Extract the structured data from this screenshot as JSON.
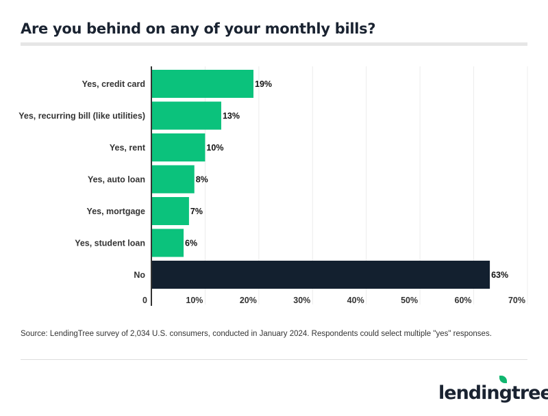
{
  "title": "Are you behind on any of your monthly bills?",
  "source": "Source: LendingTree survey of 2,034 U.S. consumers, conducted in January 2024. Respondents could select multiple \"yes\" responses.",
  "logo": "lendingtree",
  "chart_data": {
    "type": "bar",
    "orientation": "horizontal",
    "categories": [
      "Yes, credit card",
      "Yes, recurring bill (like utilities)",
      "Yes, rent",
      "Yes, auto loan",
      "Yes, mortgage",
      "Yes, student loan",
      "No"
    ],
    "values": [
      19,
      13,
      10,
      8,
      7,
      6,
      63
    ],
    "data_labels": [
      "19%",
      "13%",
      "10%",
      "8%",
      "7%",
      "6%",
      "63%"
    ],
    "colors": [
      "#0bc27c",
      "#0bc27c",
      "#0bc27c",
      "#0bc27c",
      "#0bc27c",
      "#0bc27c",
      "#13202f"
    ],
    "xlim": [
      0,
      70
    ],
    "xticks": [
      "0",
      "10%",
      "20%",
      "30%",
      "40%",
      "50%",
      "60%",
      "70%"
    ],
    "grid": true,
    "xlabel": "",
    "ylabel": ""
  }
}
